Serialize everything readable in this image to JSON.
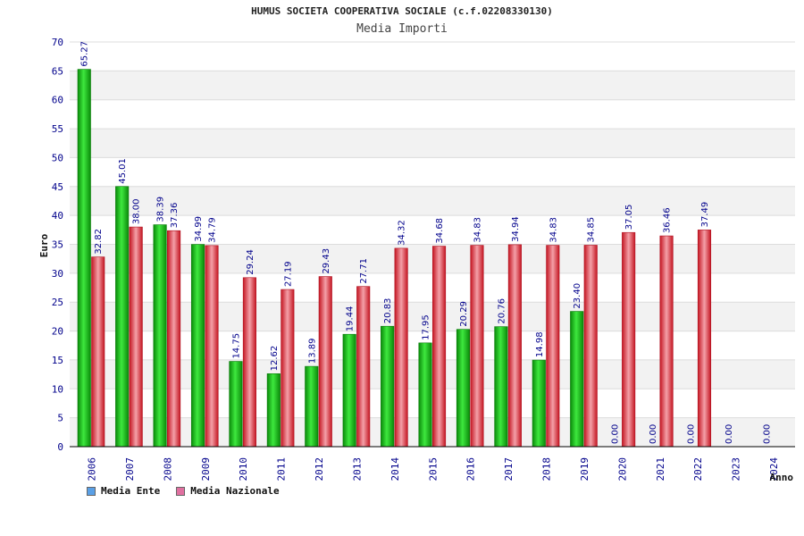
{
  "header": {
    "title": "HUMUS SOCIETA COOPERATIVA SOCIALE (c.f.02208330130)",
    "subtitle": "Media Importi"
  },
  "colors": {
    "ente_bar": "#1ec81e",
    "nazionale_bar": "#e8323c",
    "ente_legend": "#5aa0e6",
    "nazionale_legend": "#e070a0",
    "axis_text": "#00008b",
    "value_text": "#00008b",
    "grid_band": "#f2f2f2"
  },
  "chart_data": {
    "type": "bar",
    "title": "HUMUS SOCIETA COOPERATIVA SOCIALE (c.f.02208330130)",
    "subtitle": "Media Importi",
    "xlabel": "Anno",
    "ylabel": "Euro",
    "ylim": [
      0,
      70
    ],
    "yticks": [
      0,
      5,
      10,
      15,
      20,
      25,
      30,
      35,
      40,
      45,
      50,
      55,
      60,
      65,
      70
    ],
    "grid": true,
    "legend_position": "bottom-left",
    "categories": [
      "2006",
      "2007",
      "2008",
      "2009",
      "2010",
      "2011",
      "2012",
      "2013",
      "2014",
      "2015",
      "2016",
      "2017",
      "2018",
      "2019",
      "2020",
      "2021",
      "2022",
      "2023",
      "2024"
    ],
    "series": [
      {
        "name": "Media Ente",
        "values": [
          65.27,
          45.01,
          38.39,
          34.99,
          14.75,
          12.62,
          13.89,
          19.44,
          20.83,
          17.95,
          20.29,
          20.76,
          14.98,
          23.4,
          0.0,
          0.0,
          0.0,
          0.0,
          0.0
        ],
        "labels": [
          "65.27",
          "45.01",
          "38.39",
          "34.99",
          "14.75",
          "12.62",
          "13.89",
          "19.44",
          "20.83",
          "17.95",
          "20.29",
          "20.76",
          "14.98",
          "23.40",
          "0.00",
          "0.00",
          "0.00",
          "0.00",
          "0.00"
        ]
      },
      {
        "name": "Media Nazionale",
        "values": [
          32.82,
          38.0,
          37.36,
          34.79,
          29.24,
          27.19,
          29.43,
          27.71,
          34.32,
          34.68,
          34.83,
          34.94,
          34.83,
          34.85,
          37.05,
          36.46,
          37.49,
          null,
          null
        ],
        "labels": [
          "32.82",
          "38.00",
          "37.36",
          "34.79",
          "29.24",
          "27.19",
          "29.43",
          "27.71",
          "34.32",
          "34.68",
          "34.83",
          "34.94",
          "34.83",
          "34.85",
          "37.05",
          "36.46",
          "37.49",
          "",
          ""
        ]
      }
    ]
  }
}
